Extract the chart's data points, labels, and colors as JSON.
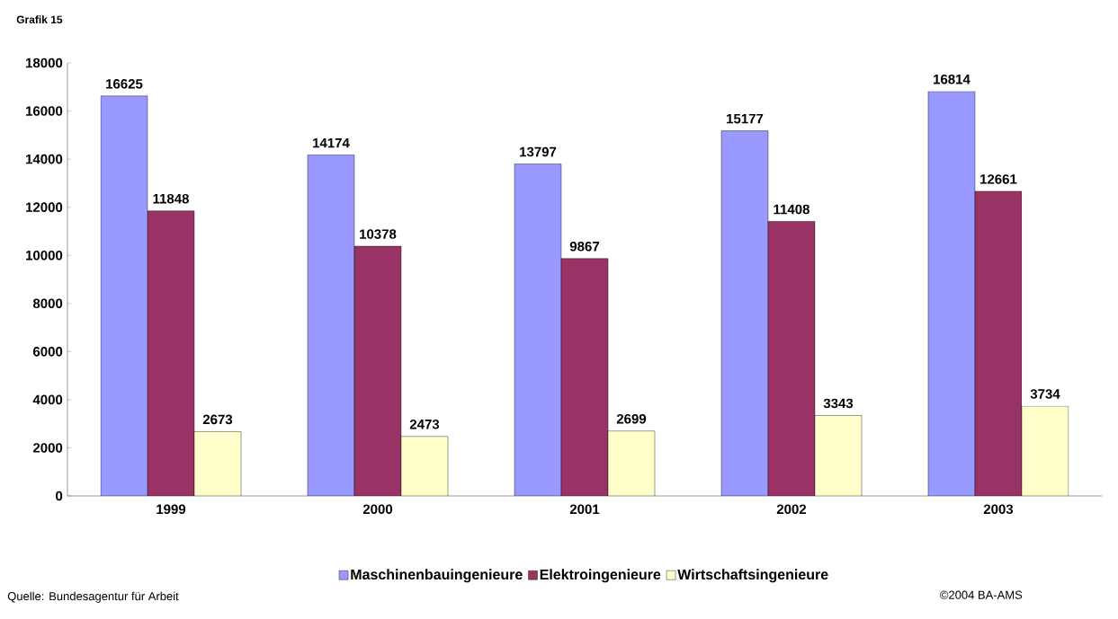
{
  "chart_data": {
    "type": "bar",
    "categories": [
      "1999",
      "2000",
      "2001",
      "2002",
      "2003"
    ],
    "series": [
      {
        "name": "Maschinenbauingenieure",
        "color": "#9999ff",
        "values": [
          16625,
          14174,
          13797,
          15177,
          16814
        ]
      },
      {
        "name": "Elektroingenieure",
        "color": "#993366",
        "values": [
          11848,
          10378,
          9867,
          11408,
          12661
        ]
      },
      {
        "name": "Wirtschaftsingenieure",
        "color": "#ffffcc",
        "values": [
          2673,
          2473,
          2699,
          3343,
          3734
        ]
      }
    ],
    "ylim": [
      0,
      18000
    ],
    "yticks": [
      0,
      2000,
      4000,
      6000,
      8000,
      10000,
      12000,
      14000,
      16000,
      18000
    ],
    "data_labels": true,
    "grid": false,
    "legend": "bottom",
    "annotations": [
      "Grafik 15",
      "Quelle: Bundesagentur für Arbeit",
      "©2004 BA-AMS"
    ]
  }
}
